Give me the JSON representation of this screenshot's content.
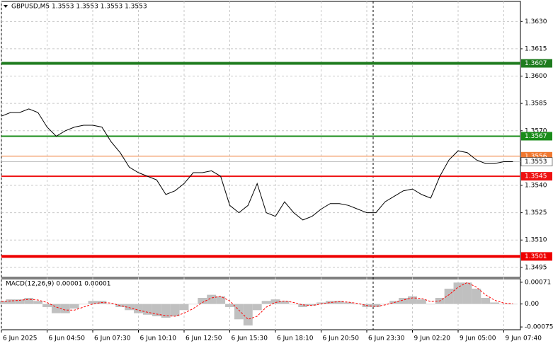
{
  "chart_data": [
    {
      "type": "line",
      "title": "GBPUSD,M5  1.3553 1.3553 1.3553 1.3553",
      "color": "#000000",
      "grid": true,
      "categories": [
        "6 Jun 2025",
        null,
        null,
        null,
        null,
        "6 Jun 04:50",
        null,
        null,
        null,
        null,
        "6 Jun 07:30",
        null,
        null,
        null,
        null,
        "6 Jun 10:10",
        null,
        null,
        null,
        null,
        "6 Jun 12:50",
        null,
        null,
        null,
        null,
        "6 Jun 15:30",
        null,
        null,
        null,
        null,
        "6 Jun 18:10",
        null,
        null,
        null,
        null,
        "6 Jun 20:50",
        null,
        null,
        null,
        null,
        "6 Jun 23:30",
        null,
        null,
        null,
        null,
        "9 Jun 02:20",
        null,
        null,
        null,
        null,
        "9 Jun 05:00",
        null,
        null,
        null,
        null,
        "9 Jun 07:40",
        null
      ],
      "values": [
        1.3578,
        1.358,
        1.358,
        1.3582,
        1.358,
        1.3572,
        1.3567,
        1.357,
        1.3572,
        1.3573,
        1.3573,
        1.3572,
        1.3564,
        1.3558,
        1.355,
        1.3547,
        1.3545,
        1.3543,
        1.3535,
        1.3537,
        1.3541,
        1.3547,
        1.3547,
        1.3548,
        1.3545,
        1.3529,
        1.3525,
        1.3529,
        1.3541,
        1.3525,
        1.3523,
        1.3531,
        1.3525,
        1.3521,
        1.3523,
        1.3527,
        1.353,
        1.353,
        1.3529,
        1.3527,
        1.3525,
        1.3525,
        1.3531,
        1.3534,
        1.3537,
        1.3538,
        1.3535,
        1.3533,
        1.3545,
        1.3554,
        1.3559,
        1.3558,
        1.3554,
        1.3552,
        1.3552,
        1.3553,
        1.3553
      ],
      "ylim": [
        1.34895,
        1.3641
      ],
      "yticks": [
        {
          "value": 1.363,
          "label": "1.3630"
        },
        1.3615,
        {
          "value": 1.36,
          "label": "1.3600"
        },
        1.3585,
        {
          "value": 1.357,
          "label": "1.3570"
        },
        {
          "value": 1.354,
          "label": "1.3540"
        },
        1.3525,
        {
          "value": 1.351,
          "label": "1.3510"
        },
        1.3495
      ],
      "levels": [
        {
          "value": 1.3607,
          "color": "#1e7b1e"
        },
        {
          "value": 1.3567,
          "color": "#1a8c1a"
        },
        {
          "value": 1.3556,
          "color": "#f07830"
        },
        {
          "value": 1.3545,
          "color": "#ee1111"
        },
        {
          "value": 1.3501,
          "color": "#ee0000"
        }
      ]
    },
    {
      "type": "macd",
      "title": "MACD(12,26,9) 0.00001 0.00001",
      "series": [
        {
          "color": "#c0c0c0",
          "values": [
            0.0001,
            0.00015,
            0.00015,
            0.0002,
            0.0001,
            -0.0001,
            -0.0003,
            -0.0003,
            -0.00015,
            0,
            0.0001,
            0.0001,
            0,
            -0.0001,
            -0.0002,
            -0.0003,
            -0.00035,
            -0.0004,
            -0.00045,
            -0.0004,
            -0.0002,
            0,
            0.0002,
            0.0003,
            0.00025,
            -0.0001,
            -0.0005,
            -0.0007,
            -0.0002,
            0.0001,
            0.00015,
            0.0001,
            0,
            -0.0001,
            -5e-05,
            5e-05,
            0.0001,
            0.0001,
            5e-05,
            0,
            -0.0001,
            -0.0001,
            0,
            0.0001,
            0.0002,
            0.00025,
            0.00015,
            0,
            0.0002,
            0.0005,
            0.0007,
            0.0007,
            0.0005,
            0.0002,
            5e-05,
            0,
            0
          ]
        },
        {
          "color": "#ff0000",
          "values": [
            8e-05,
            0.0001,
            0.00012,
            0.00015,
            0.00013,
            5e-05,
            -0.0001,
            -0.0002,
            -0.0002,
            -0.0001,
            0,
            5e-05,
            3e-05,
            -5e-05,
            -0.00012,
            -0.0002,
            -0.00027,
            -0.00033,
            -0.00038,
            -0.0004,
            -0.0003,
            -0.00015,
            5e-05,
            0.0002,
            0.00025,
            0.0001,
            -0.0002,
            -0.0005,
            -0.0004,
            -0.0001,
            5e-05,
            0.0001,
            5e-05,
            -3e-05,
            -5e-05,
            0,
            5e-05,
            8e-05,
            6e-05,
            2e-05,
            -5e-05,
            -8e-05,
            -3e-05,
            5e-05,
            0.00013,
            0.0002,
            0.00018,
            8e-05,
            0.0001,
            0.0003,
            0.00055,
            0.0007,
            0.00055,
            0.0003,
            0.00012,
            3e-05,
            1e-05
          ]
        }
      ],
      "ylim": [
        -0.00084,
        0.0008
      ],
      "yticks": [
        0.00071,
        {
          "value": 0,
          "label": "0.00"
        },
        -0.00075
      ]
    }
  ]
}
